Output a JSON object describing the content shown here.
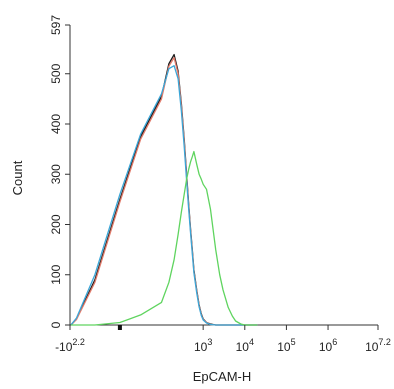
{
  "chart_data": {
    "type": "line",
    "title": "",
    "xlabel": "EpCAM-H",
    "ylabel": "Count",
    "x_scale": "log",
    "xlim": [
      -158,
      15849000
    ],
    "ylim": [
      0,
      597
    ],
    "grid": false,
    "legend": "none",
    "y_ticks": [
      0,
      100,
      200,
      300,
      400,
      500,
      597
    ],
    "x_ticks": [
      {
        "base": "-10",
        "exp": "2.2",
        "value": -158
      },
      {
        "base": "10",
        "exp": "3",
        "value": 1000
      },
      {
        "base": "10",
        "exp": "4",
        "value": 10000
      },
      {
        "base": "10",
        "exp": "5",
        "value": 100000
      },
      {
        "base": "10",
        "exp": "6",
        "value": 1000000
      },
      {
        "base": "10",
        "exp": "7.2",
        "value": 15849000
      }
    ],
    "x": [
      -150,
      -110,
      -60,
      0,
      50,
      100,
      150,
      200,
      250,
      300,
      350,
      400,
      450,
      500,
      550,
      600,
      700,
      800,
      900,
      1000,
      1200,
      1500,
      2000,
      2500,
      3000,
      4000,
      5000,
      6000,
      8000,
      10000,
      15000,
      20000
    ],
    "series": [
      {
        "color": "#1a1a1a",
        "values": [
          0,
          12,
          90,
          250,
          375,
          455,
          520,
          538,
          505,
          440,
          370,
          300,
          240,
          190,
          150,
          110,
          70,
          40,
          22,
          12,
          5,
          2,
          0,
          0,
          0,
          0,
          0,
          0,
          0,
          0,
          0,
          0
        ]
      },
      {
        "color": "#e07a6a",
        "values": [
          0,
          11,
          85,
          245,
          370,
          450,
          515,
          532,
          500,
          435,
          365,
          295,
          236,
          186,
          146,
          106,
          68,
          38,
          20,
          11,
          5,
          1,
          0,
          0,
          0,
          0,
          0,
          0,
          0,
          0,
          0,
          0
        ]
      },
      {
        "color": "#3aa6d8",
        "values": [
          0,
          14,
          100,
          260,
          380,
          460,
          510,
          516,
          490,
          425,
          355,
          288,
          230,
          182,
          142,
          104,
          64,
          36,
          19,
          10,
          4,
          1,
          0,
          0,
          0,
          0,
          0,
          0,
          0,
          0,
          0,
          0
        ]
      },
      {
        "color": "#5fd45f",
        "values": [
          0,
          0,
          0,
          5,
          20,
          45,
          85,
          130,
          180,
          225,
          260,
          290,
          310,
          325,
          335,
          345,
          320,
          300,
          290,
          280,
          270,
          230,
          150,
          100,
          70,
          35,
          18,
          8,
          2,
          0,
          0,
          0
        ]
      }
    ]
  }
}
